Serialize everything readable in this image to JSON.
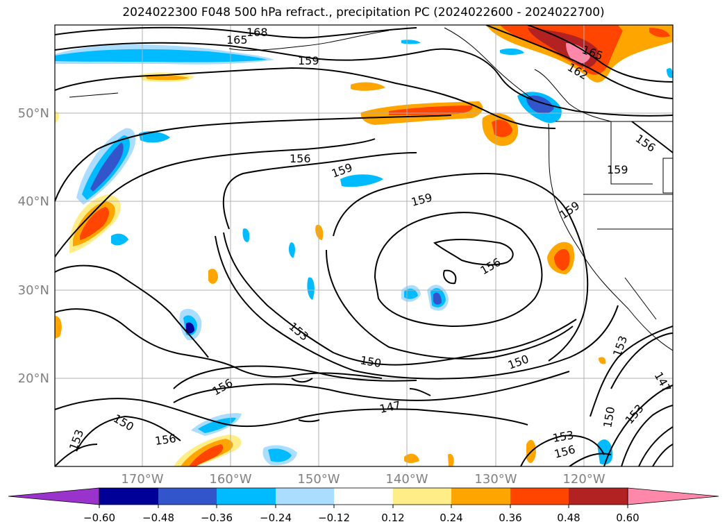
{
  "title": "2024022300 F048 500 hPa refract., precipitation PC (2024022600 - 2024022700)",
  "map": {
    "lat_labels": [
      "50°N",
      "40°N",
      "30°N",
      "20°N"
    ],
    "lon_labels": [
      "170°W",
      "160°W",
      "150°W",
      "140°W",
      "130°W",
      "120°W"
    ],
    "contour_labels": [
      "168",
      "165",
      "159",
      "165",
      "162",
      "156",
      "159",
      "156",
      "159",
      "159",
      "159",
      "156",
      "153",
      "150",
      "150",
      "156",
      "147",
      "150",
      "156",
      "153",
      "153",
      "150",
      "153",
      "156",
      "147",
      "153"
    ],
    "colors": {
      "grid": "#b0b0b0",
      "tick_label": "#808080",
      "contour": "#000000"
    }
  },
  "colorbar": {
    "tick_labels": [
      "−0.60",
      "−0.48",
      "−0.36",
      "−0.24",
      "−0.12",
      "0.12",
      "0.24",
      "0.36",
      "0.48",
      "0.60"
    ],
    "colors": [
      "#9933cc",
      "#000099",
      "#3355cc",
      "#00bbff",
      "#aaddff",
      "#ffffff",
      "#ffee88",
      "#ffa500",
      "#ff4500",
      "#b22222",
      "#ff88aa"
    ]
  }
}
